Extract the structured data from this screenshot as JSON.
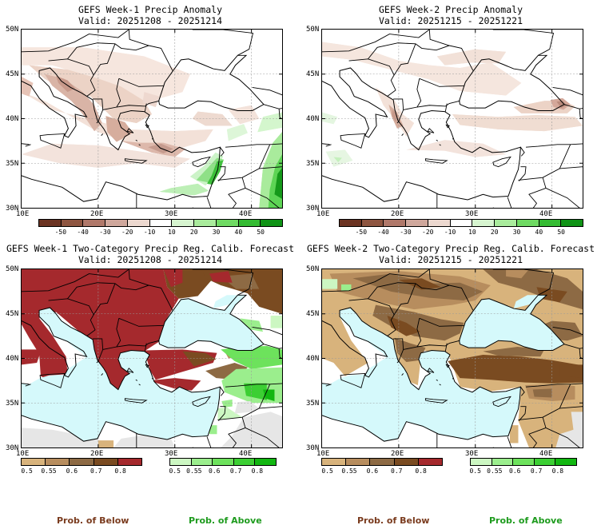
{
  "panels": [
    {
      "title": "GEFS Week-1 Precip Anomaly",
      "valid": "Valid: 20251208 - 20251214"
    },
    {
      "title": "GEFS Week-2 Precip Anomaly",
      "valid": "Valid: 20251215 - 20251221"
    },
    {
      "title": "GEFS Week-1 Two-Category Precip Reg. Calib. Forecast",
      "valid": "Valid: 20251208 - 20251214"
    },
    {
      "title": "GEFS Week-2 Two-Category Precip Reg. Calib. Forecast",
      "valid": "Valid: 20251215 - 20251221"
    }
  ],
  "lat_labels": [
    "50N",
    "45N",
    "40N",
    "35N",
    "30N"
  ],
  "lon_labels": [
    "10E",
    "20E",
    "30E",
    "40E"
  ],
  "anomaly_colorbar": {
    "labels": [
      "-50",
      "-40",
      "-30",
      "-20",
      "-10",
      "10",
      "20",
      "30",
      "40",
      "50"
    ],
    "colors": [
      "#6b3322",
      "#8e5540",
      "#b0786a",
      "#cfa79c",
      "#ecd8cf",
      "#ffffff",
      "#d7f5d0",
      "#a9eb9c",
      "#6fda63",
      "#34bb32",
      "#0f9316"
    ]
  },
  "prob_below_colorbar": {
    "labels": [
      "0.5",
      "0.55",
      "0.6",
      "0.7",
      "0.8"
    ],
    "colors": [
      "#d8b37c",
      "#b78d5e",
      "#8d6a44",
      "#7a4b21",
      "#a5292d"
    ]
  },
  "prob_above_colorbar": {
    "labels": [
      "0.5",
      "0.55",
      "0.6",
      "0.7",
      "0.8"
    ],
    "colors": [
      "#ccf7c2",
      "#9bee8d",
      "#6de25c",
      "#3ccf33",
      "#12b711"
    ]
  },
  "legend_text": {
    "below": "Prob. of Below",
    "above": "Prob. of Above"
  },
  "map_colors": {
    "sea_prob": "#d5f9fb",
    "nodata": "#e6e6e6",
    "coast": "#000000",
    "grid": "#999999"
  }
}
